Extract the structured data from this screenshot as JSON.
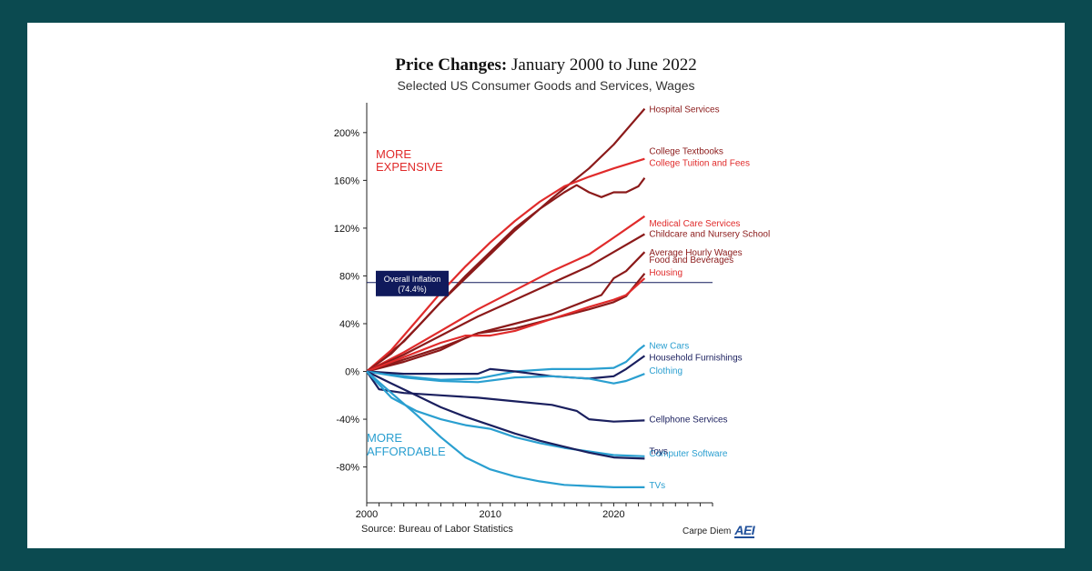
{
  "chart_data": {
    "type": "line",
    "title_bold": "Price Changes:",
    "title_rest": "January 2000 to June 2022",
    "subtitle": "Selected US Consumer Goods and Services, Wages",
    "source": "Source: Bureau of Labor Statistics",
    "brand_text": "Carpe Diem",
    "brand_logo": "AEI",
    "xlim": [
      2000,
      2028
    ],
    "ylim": [
      -110,
      225
    ],
    "y_ticks": [
      200,
      160,
      120,
      80,
      40,
      0,
      -40,
      -80
    ],
    "y_tick_labels": [
      "200%",
      "160%",
      "120%",
      "80%",
      "40%",
      "0%",
      "-40%",
      "-80%"
    ],
    "x_ticks": [
      2000,
      2010,
      2020
    ],
    "x_tick_labels": [
      "2000",
      "2010",
      "2020"
    ],
    "annotations": {
      "more_expensive": [
        "MORE",
        "EXPENSIVE"
      ],
      "more_affordable": [
        "MORE",
        "AFFORDABLE"
      ],
      "inflation_box": [
        "Overall Inflation",
        "(74.4%)"
      ]
    },
    "inflation_value": 74.4,
    "colors": {
      "dark_red": "#8b1a1a",
      "red": "#e02b2b",
      "dark_blue": "#1a1f5e",
      "light_blue": "#2a9fd0",
      "navy_box": "#101a5c"
    },
    "series": [
      {
        "name": "Hospital Services",
        "color": "#8b1a1a",
        "points": [
          [
            2000,
            0
          ],
          [
            2003,
            25
          ],
          [
            2006,
            58
          ],
          [
            2009,
            88
          ],
          [
            2012,
            118
          ],
          [
            2015,
            145
          ],
          [
            2018,
            170
          ],
          [
            2020,
            190
          ],
          [
            2022.5,
            220
          ]
        ]
      },
      {
        "name": "College Tuition and Fees",
        "color": "#e02b2b",
        "points": [
          [
            2000,
            0
          ],
          [
            2002,
            18
          ],
          [
            2004,
            42
          ],
          [
            2006,
            66
          ],
          [
            2008,
            88
          ],
          [
            2010,
            108
          ],
          [
            2012,
            126
          ],
          [
            2014,
            142
          ],
          [
            2016,
            155
          ],
          [
            2018,
            163
          ],
          [
            2020,
            170
          ],
          [
            2022.5,
            178
          ]
        ]
      },
      {
        "name": "College Textbooks",
        "color": "#8b1a1a",
        "points": [
          [
            2000,
            0
          ],
          [
            2002,
            15
          ],
          [
            2004,
            36
          ],
          [
            2006,
            58
          ],
          [
            2008,
            80
          ],
          [
            2010,
            100
          ],
          [
            2012,
            120
          ],
          [
            2014,
            136
          ],
          [
            2016,
            150
          ],
          [
            2017,
            156
          ],
          [
            2018,
            150
          ],
          [
            2019,
            146
          ],
          [
            2020,
            150
          ],
          [
            2021,
            150
          ],
          [
            2022,
            155
          ],
          [
            2022.5,
            162
          ]
        ]
      },
      {
        "name": "Medical Care Services",
        "color": "#e02b2b",
        "points": [
          [
            2000,
            0
          ],
          [
            2003,
            16
          ],
          [
            2006,
            34
          ],
          [
            2009,
            52
          ],
          [
            2012,
            68
          ],
          [
            2015,
            84
          ],
          [
            2018,
            98
          ],
          [
            2020,
            112
          ],
          [
            2022.5,
            130
          ]
        ]
      },
      {
        "name": "Childcare and Nursery School",
        "color": "#8b1a1a",
        "points": [
          [
            2000,
            0
          ],
          [
            2003,
            14
          ],
          [
            2006,
            30
          ],
          [
            2009,
            46
          ],
          [
            2012,
            60
          ],
          [
            2015,
            74
          ],
          [
            2018,
            88
          ],
          [
            2020,
            100
          ],
          [
            2022.5,
            115
          ]
        ]
      },
      {
        "name": "Average Hourly Wages",
        "color": "#8b1a1a",
        "points": [
          [
            2000,
            0
          ],
          [
            2003,
            10
          ],
          [
            2006,
            20
          ],
          [
            2009,
            32
          ],
          [
            2012,
            40
          ],
          [
            2015,
            48
          ],
          [
            2018,
            60
          ],
          [
            2019,
            64
          ],
          [
            2020,
            78
          ],
          [
            2021,
            84
          ],
          [
            2022.5,
            100
          ]
        ]
      },
      {
        "name": "Food and Beverages",
        "color": "#8b1a1a",
        "points": [
          [
            2000,
            0
          ],
          [
            2003,
            8
          ],
          [
            2006,
            18
          ],
          [
            2008,
            28
          ],
          [
            2009,
            32
          ],
          [
            2012,
            36
          ],
          [
            2015,
            44
          ],
          [
            2018,
            52
          ],
          [
            2020,
            58
          ],
          [
            2021,
            63
          ],
          [
            2022.5,
            82
          ]
        ]
      },
      {
        "name": "Housing",
        "color": "#e02b2b",
        "points": [
          [
            2000,
            0
          ],
          [
            2003,
            12
          ],
          [
            2006,
            24
          ],
          [
            2008,
            30
          ],
          [
            2010,
            30
          ],
          [
            2012,
            34
          ],
          [
            2015,
            44
          ],
          [
            2018,
            54
          ],
          [
            2020,
            60
          ],
          [
            2021,
            64
          ],
          [
            2022.5,
            78
          ]
        ]
      },
      {
        "name": "New Cars",
        "color": "#2a9fd0",
        "points": [
          [
            2000,
            0
          ],
          [
            2003,
            -4
          ],
          [
            2006,
            -7
          ],
          [
            2009,
            -6
          ],
          [
            2012,
            0
          ],
          [
            2015,
            2
          ],
          [
            2018,
            2
          ],
          [
            2020,
            3
          ],
          [
            2021,
            8
          ],
          [
            2022,
            18
          ],
          [
            2022.5,
            22
          ]
        ]
      },
      {
        "name": "Household Furnishings",
        "color": "#1a1f5e",
        "points": [
          [
            2000,
            0
          ],
          [
            2003,
            -2
          ],
          [
            2006,
            -2
          ],
          [
            2009,
            -2
          ],
          [
            2010,
            2
          ],
          [
            2012,
            0
          ],
          [
            2015,
            -4
          ],
          [
            2018,
            -6
          ],
          [
            2020,
            -4
          ],
          [
            2021,
            2
          ],
          [
            2022.5,
            13
          ]
        ]
      },
      {
        "name": "Clothing",
        "color": "#2a9fd0",
        "points": [
          [
            2000,
            0
          ],
          [
            2003,
            -5
          ],
          [
            2006,
            -8
          ],
          [
            2009,
            -9
          ],
          [
            2012,
            -5
          ],
          [
            2015,
            -4
          ],
          [
            2018,
            -6
          ],
          [
            2020,
            -10
          ],
          [
            2021,
            -8
          ],
          [
            2022,
            -4
          ],
          [
            2022.5,
            -2
          ]
        ]
      },
      {
        "name": "Cellphone Services",
        "color": "#1a1f5e",
        "points": [
          [
            2000,
            0
          ],
          [
            2001,
            -15
          ],
          [
            2003,
            -18
          ],
          [
            2006,
            -20
          ],
          [
            2009,
            -22
          ],
          [
            2012,
            -25
          ],
          [
            2015,
            -28
          ],
          [
            2017,
            -33
          ],
          [
            2018,
            -40
          ],
          [
            2020,
            -42
          ],
          [
            2022.5,
            -41
          ]
        ]
      },
      {
        "name": "Computer Software",
        "color": "#2a9fd0",
        "points": [
          [
            2000,
            0
          ],
          [
            2002,
            -22
          ],
          [
            2004,
            -33
          ],
          [
            2006,
            -40
          ],
          [
            2008,
            -45
          ],
          [
            2010,
            -48
          ],
          [
            2012,
            -55
          ],
          [
            2014,
            -60
          ],
          [
            2016,
            -64
          ],
          [
            2018,
            -67
          ],
          [
            2020,
            -70
          ],
          [
            2022.5,
            -71
          ]
        ]
      },
      {
        "name": "Toys",
        "color": "#1a1f5e",
        "points": [
          [
            2000,
            0
          ],
          [
            2002,
            -10
          ],
          [
            2004,
            -20
          ],
          [
            2006,
            -30
          ],
          [
            2008,
            -38
          ],
          [
            2010,
            -45
          ],
          [
            2012,
            -52
          ],
          [
            2014,
            -58
          ],
          [
            2016,
            -63
          ],
          [
            2018,
            -68
          ],
          [
            2020,
            -72
          ],
          [
            2022.5,
            -73
          ]
        ]
      },
      {
        "name": "TVs",
        "color": "#2a9fd0",
        "points": [
          [
            2000,
            0
          ],
          [
            2002,
            -18
          ],
          [
            2004,
            -36
          ],
          [
            2006,
            -55
          ],
          [
            2008,
            -72
          ],
          [
            2010,
            -82
          ],
          [
            2012,
            -88
          ],
          [
            2014,
            -92
          ],
          [
            2016,
            -95
          ],
          [
            2018,
            -96
          ],
          [
            2020,
            -97
          ],
          [
            2022.5,
            -97
          ]
        ]
      }
    ]
  }
}
